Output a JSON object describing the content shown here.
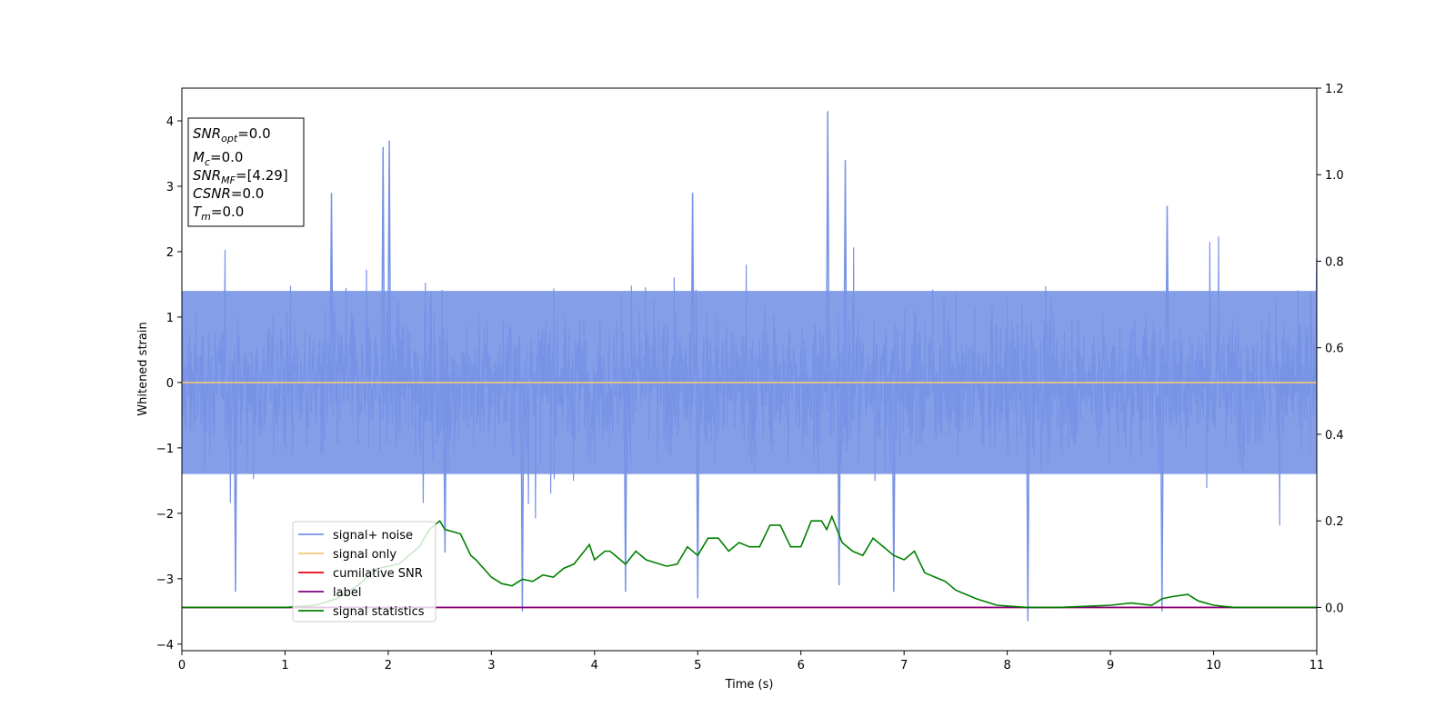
{
  "chart_data": {
    "type": "line",
    "xlabel": "Time (s)",
    "ylabel": "Whitened strain",
    "xlim": [
      0,
      11
    ],
    "ylim_left": [
      -4.1,
      4.5
    ],
    "ylim_right": [
      -0.1,
      1.2
    ],
    "x_ticks": [
      0,
      1,
      2,
      3,
      4,
      5,
      6,
      7,
      8,
      9,
      10,
      11
    ],
    "y_ticks_left": [
      -4,
      -3,
      -2,
      -1,
      0,
      1,
      2,
      3,
      4
    ],
    "y_tick_labels_left": [
      "−4",
      "−3",
      "−2",
      "−1",
      "0",
      "1",
      "2",
      "3",
      "4"
    ],
    "y_ticks_right": [
      0.0,
      0.2,
      0.4,
      0.6,
      0.8,
      1.0,
      1.2
    ],
    "y_tick_labels_right": [
      "0.0",
      "0.2",
      "0.4",
      "0.6",
      "0.8",
      "1.0",
      "1.2"
    ],
    "grid": false,
    "legend_position": "lower-left",
    "info_box": {
      "snr_opt": {
        "base": "SNR",
        "sub": "opt",
        "value": "=0.0"
      },
      "mc": {
        "base": "M",
        "sub": "c",
        "value": "=0.0"
      },
      "snr_mf": {
        "base": "SNR",
        "sub": "MF",
        "value": "=[4.29]"
      },
      "csnr": {
        "base": "CSNR",
        "sub": "",
        "value": "=0.0"
      },
      "tm": {
        "base": "T",
        "sub": "m",
        "value": "=0.0"
      }
    },
    "series": [
      {
        "name": "signal+ noise",
        "axis": "left",
        "color": "#7893e6",
        "kind": "noise",
        "noise_band": [
          -1.4,
          1.4
        ],
        "prominent_spikes": [
          {
            "x": 0.52,
            "y": -3.2
          },
          {
            "x": 1.45,
            "y": 2.9
          },
          {
            "x": 1.95,
            "y": 3.6
          },
          {
            "x": 2.01,
            "y": 3.7
          },
          {
            "x": 2.55,
            "y": -2.6
          },
          {
            "x": 3.3,
            "y": -3.5
          },
          {
            "x": 4.3,
            "y": -3.2
          },
          {
            "x": 4.95,
            "y": 2.9
          },
          {
            "x": 5.0,
            "y": -3.3
          },
          {
            "x": 6.26,
            "y": 4.15
          },
          {
            "x": 6.43,
            "y": 3.4
          },
          {
            "x": 6.37,
            "y": -3.1
          },
          {
            "x": 6.9,
            "y": -3.2
          },
          {
            "x": 8.2,
            "y": -3.65
          },
          {
            "x": 9.5,
            "y": -3.5
          },
          {
            "x": 9.55,
            "y": 2.7
          },
          {
            "x": 11.0,
            "y": 1.9
          }
        ]
      },
      {
        "name": "signal only",
        "axis": "left",
        "color": "#f5c77a",
        "x": [
          0,
          11
        ],
        "y": [
          0,
          0
        ]
      },
      {
        "name": "cumilative SNR",
        "axis": "right",
        "color": "#e8000b",
        "x": [
          0,
          11
        ],
        "y": [
          0,
          0
        ]
      },
      {
        "name": "label",
        "axis": "right",
        "color": "#800080",
        "x": [
          0,
          11
        ],
        "y": [
          0,
          0
        ]
      },
      {
        "name": "signal statistics",
        "axis": "right",
        "color": "#008000",
        "x": [
          0,
          1.0,
          1.3,
          1.5,
          1.7,
          1.9,
          2.1,
          2.3,
          2.4,
          2.5,
          2.55,
          2.7,
          2.8,
          2.85,
          3.0,
          3.1,
          3.2,
          3.3,
          3.4,
          3.5,
          3.6,
          3.7,
          3.8,
          3.9,
          3.95,
          4.0,
          4.1,
          4.15,
          4.3,
          4.4,
          4.5,
          4.7,
          4.8,
          4.9,
          5.0,
          5.1,
          5.2,
          5.3,
          5.4,
          5.5,
          5.6,
          5.7,
          5.8,
          5.9,
          6.0,
          6.1,
          6.2,
          6.25,
          6.3,
          6.4,
          6.5,
          6.6,
          6.7,
          6.8,
          6.9,
          7.0,
          7.1,
          7.2,
          7.3,
          7.4,
          7.5,
          7.6,
          7.7,
          7.9,
          8.2,
          8.5,
          9.0,
          9.2,
          9.4,
          9.5,
          9.6,
          9.75,
          9.85,
          10.0,
          10.2,
          10.5,
          11.0
        ],
        "y": [
          0.0,
          0.0,
          0.005,
          0.02,
          0.05,
          0.09,
          0.1,
          0.14,
          0.18,
          0.2,
          0.18,
          0.17,
          0.12,
          0.11,
          0.07,
          0.055,
          0.05,
          0.065,
          0.06,
          0.075,
          0.07,
          0.09,
          0.1,
          0.13,
          0.145,
          0.11,
          0.13,
          0.13,
          0.1,
          0.13,
          0.11,
          0.095,
          0.1,
          0.14,
          0.12,
          0.16,
          0.16,
          0.13,
          0.15,
          0.14,
          0.14,
          0.19,
          0.19,
          0.14,
          0.14,
          0.2,
          0.2,
          0.18,
          0.21,
          0.15,
          0.13,
          0.12,
          0.16,
          0.14,
          0.12,
          0.11,
          0.13,
          0.08,
          0.07,
          0.06,
          0.04,
          0.03,
          0.02,
          0.005,
          0.0,
          0.0,
          0.005,
          0.01,
          0.005,
          0.02,
          0.025,
          0.03,
          0.015,
          0.005,
          0.0,
          0.0,
          0.0
        ]
      }
    ]
  }
}
